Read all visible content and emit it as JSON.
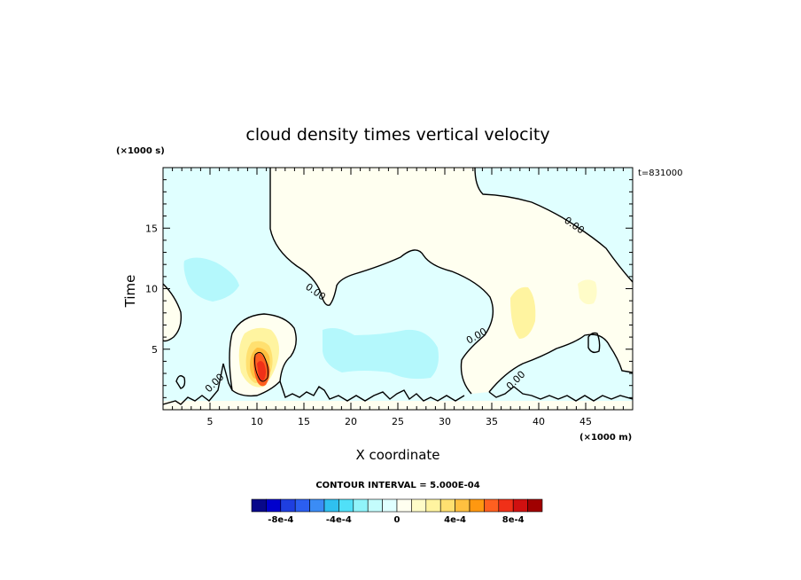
{
  "chart_data": {
    "type": "heatmap",
    "title": "cloud density times vertical velocity",
    "xlabel": "X coordinate",
    "ylabel": "Time",
    "x_unit": "(×1000 m)",
    "y_unit": "(×1000 s)",
    "time_label": "t=831000",
    "xlim": [
      0,
      50
    ],
    "ylim": [
      0,
      20
    ],
    "x_ticks": [
      5,
      10,
      15,
      20,
      25,
      30,
      35,
      40,
      45
    ],
    "y_ticks": [
      5,
      10,
      15
    ],
    "contour_label": "0.00",
    "contour_interval_text": "CONTOUR INTERVAL = 5.000E-04",
    "colorbar": {
      "min": -0.001,
      "max": 0.001,
      "step": 0.0001,
      "tick_values": [
        -0.0008,
        -0.0004,
        0,
        0.0004,
        0.0008
      ],
      "tick_labels": [
        "-8e-4",
        "-4e-4",
        "0",
        "4e-4",
        "8e-4"
      ],
      "colors": [
        "#08088a",
        "#0000cd",
        "#1f3fe0",
        "#2b5ef0",
        "#3b8cf5",
        "#2fc0f0",
        "#50e0f8",
        "#90f4fa",
        "#c4fcfc",
        "#e0ffff",
        "#fffff0",
        "#fffcc8",
        "#fff4a0",
        "#ffe070",
        "#ffc040",
        "#ff9810",
        "#ff6020",
        "#f03018",
        "#d01010",
        "#a00000"
      ]
    }
  }
}
